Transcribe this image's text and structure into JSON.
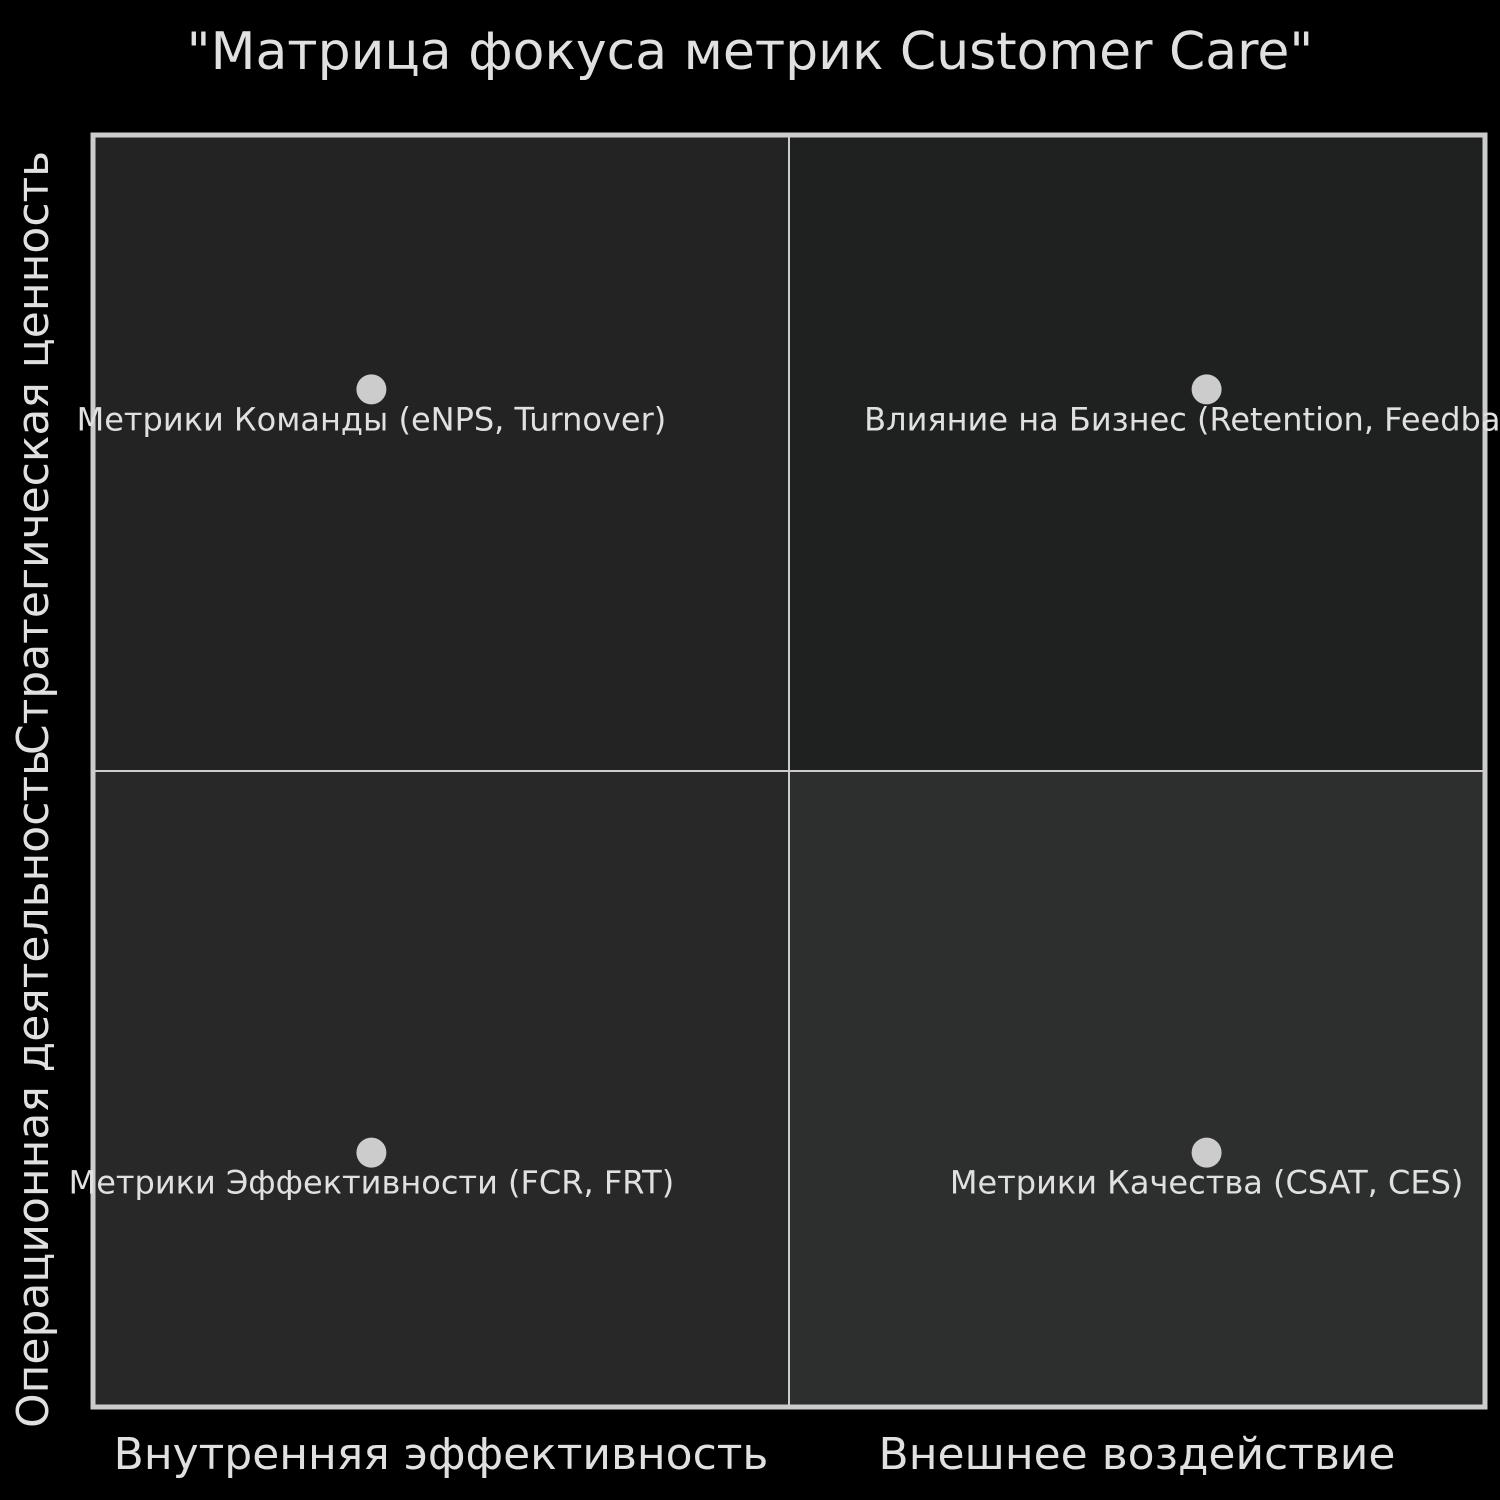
{
  "chart_data": {
    "type": "quadrant",
    "title": "\"Матрица фокуса метрик Customer Care\"",
    "x_axis": {
      "left": "Внутренняя эффективность",
      "right": "Внешнее воздействие"
    },
    "y_axis": {
      "bottom": "Операционная деятельность",
      "top": "Стратегическая ценность"
    },
    "quadrant_colors": {
      "top_left": "#232323",
      "top_right": "#1f2020",
      "bottom_left": "#282828",
      "bottom_right": "#2d2e2e"
    },
    "xlim": [
      0,
      1
    ],
    "ylim": [
      0,
      1
    ],
    "point_color": "#cccccc",
    "points": [
      {
        "name": "Метрики Команды (eNPS, Turnover)",
        "x": 0.2,
        "y": 0.8
      },
      {
        "name": "Влияние на Бизнес (Retention, Feedback)",
        "x": 0.8,
        "y": 0.8
      },
      {
        "name": "Метрики Эффективности (FCR, FRT)",
        "x": 0.2,
        "y": 0.2
      },
      {
        "name": "Метрики Качества (CSAT, CES)",
        "x": 0.8,
        "y": 0.2
      }
    ]
  }
}
